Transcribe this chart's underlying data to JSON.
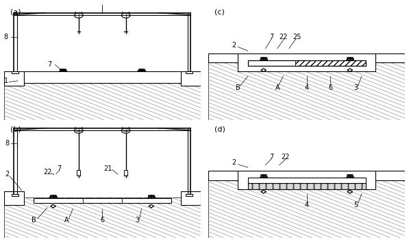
{
  "bg_color": "#ffffff",
  "ground_hatch_color": "#aaaaaa",
  "line_color": "#000000",
  "panel_labels": [
    "(a)",
    "(b)",
    "(c)",
    "(d)"
  ],
  "figsize": [
    5.97,
    3.5
  ],
  "dpi": 100
}
